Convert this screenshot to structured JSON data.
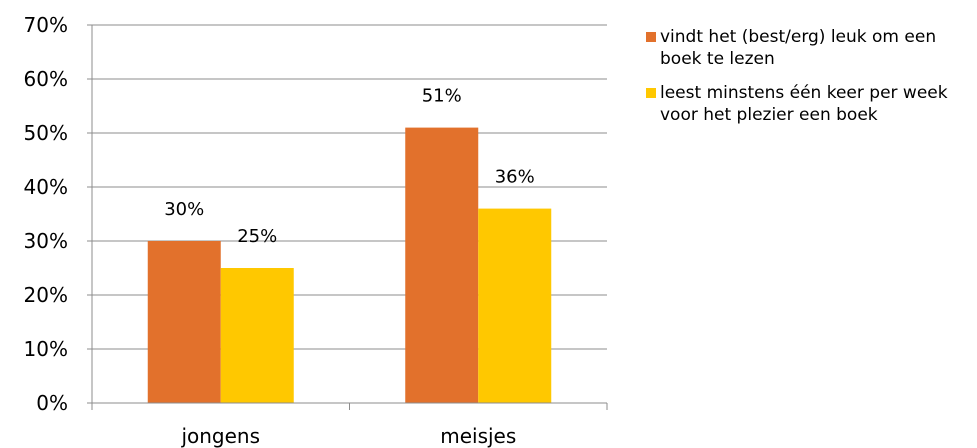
{
  "chart_data": {
    "type": "bar",
    "categories": [
      "jongens",
      "meisjes"
    ],
    "series": [
      {
        "name": "vindt het (best/erg) leuk om een boek te lezen",
        "values": [
          30,
          51
        ],
        "labels": [
          "30%",
          "51%"
        ],
        "color": "#E2712C"
      },
      {
        "name": "leest minstens één keer per week voor het plezier een boek",
        "values": [
          25,
          36
        ],
        "labels": [
          "25%",
          "36%"
        ],
        "color": "#FFC800"
      }
    ],
    "ylim": [
      0,
      70
    ],
    "yticks": [
      "0%",
      "10%",
      "20%",
      "30%",
      "40%",
      "50%",
      "60%",
      "70%"
    ],
    "grid": true,
    "legend_position": "right"
  }
}
